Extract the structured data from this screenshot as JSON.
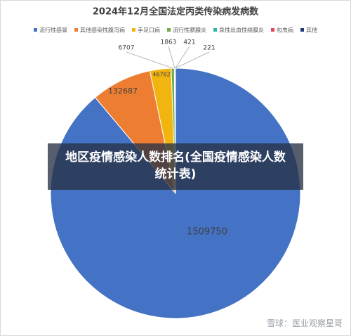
{
  "chart_data": {
    "type": "pie",
    "title": "2024年12月全国法定丙类传染病发病数",
    "categories": [
      "流行性感冒",
      "其他感染性腹泻病",
      "手足口病",
      "流行性腮腺炎",
      "急性出血性结膜炎",
      "包虫病",
      "其他"
    ],
    "values": [
      1509750,
      132687,
      46782,
      6707,
      1863,
      421,
      221
    ],
    "colors": [
      "#4472c4",
      "#ed7d31",
      "#f2b50f",
      "#70ad47",
      "#2ab7a9",
      "#e0475a",
      "#1f3a7a"
    ],
    "legend": "top"
  },
  "banner": "地区疫情感染人数排名(全国疫情感染人数统计表)",
  "watermark": "雪球：医业观察星哥"
}
